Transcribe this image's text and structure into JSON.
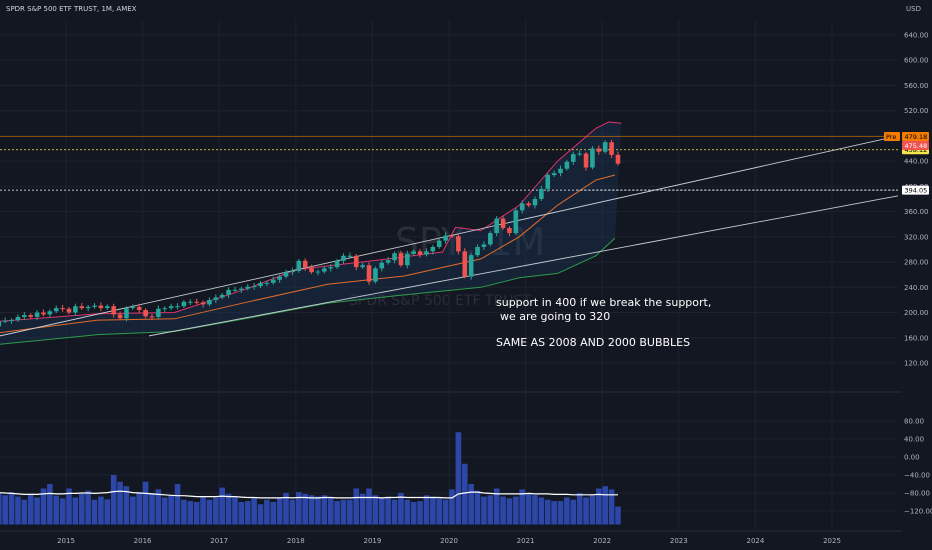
{
  "header": {
    "title": "SPDR S&P 500 ETF TRUST, 1M, AMEX",
    "currency": "USD"
  },
  "watermark": {
    "symbol": "SPY, 1M",
    "name": "SPDR S&P 500 ETF TRUST"
  },
  "annotations": {
    "line1": "support in 400 if we break the support,",
    "line2": "we are going to 320",
    "line3": "SAME AS 2008 AND 2000 BUBBLES"
  },
  "price_badges": [
    {
      "label": "458.12",
      "value": 458.12,
      "color": "#f5e64b",
      "text_color": "#000000"
    },
    {
      "label": "479.18",
      "value": 479.18,
      "color": "#f57c00",
      "text_color": "#000000",
      "tag": "Pre"
    },
    {
      "label": "475.48",
      "value": 475.48,
      "color": "#ef5350",
      "text_color": "#ffffff"
    },
    {
      "label": "394.05",
      "value": 394.05,
      "color": "#ffffff",
      "text_color": "#000000"
    }
  ],
  "colors": {
    "up": "#26a69a",
    "down": "#ef5350",
    "volume": "#2c47a8",
    "bb_upper": "#e0336b",
    "bb_lower": "#2e9c4c",
    "bb_mid": "#e36b2a",
    "trendline": "#c9ccd3",
    "volume_ma": "#ffffff"
  },
  "chart_data": [
    {
      "type": "candlestick",
      "title": "SPDR S&P 500 ETF TRUST, 1M, AMEX",
      "x_ticks": [
        "2015",
        "2016",
        "2017",
        "2018",
        "2019",
        "2020",
        "2021",
        "2022",
        "2023",
        "2024",
        "2025"
      ],
      "y_ticks": [
        640,
        600,
        560,
        520,
        480,
        440,
        400,
        360,
        320,
        280,
        240,
        200,
        160,
        120
      ],
      "y_tick_labels": [
        "640.00",
        "600.00",
        "560.00",
        "520.00",
        "480.00",
        "440.00",
        "400.00",
        "360.00",
        "320.00",
        "280.00",
        "240.00",
        "200.00",
        "160.00",
        "120.00"
      ],
      "ylim": [
        100,
        670
      ],
      "close_series": {
        "start": "2014-01",
        "values": [
          178,
          186,
          187,
          188,
          193,
          196,
          193,
          200,
          197,
          202,
          207,
          206,
          200,
          210,
          207,
          209,
          211,
          207,
          210,
          197,
          191,
          207,
          209,
          204,
          194,
          193,
          206,
          207,
          210,
          210,
          217,
          217,
          216,
          213,
          220,
          224,
          228,
          236,
          236,
          238,
          241,
          242,
          247,
          247,
          252,
          257,
          264,
          266,
          282,
          271,
          264,
          265,
          270,
          272,
          282,
          290,
          290,
          272,
          275,
          249,
          270,
          279,
          283,
          294,
          275,
          293,
          297,
          292,
          297,
          304,
          314,
          322,
          321,
          297,
          257,
          291,
          304,
          308,
          326,
          349,
          334,
          326,
          362,
          373,
          370,
          380,
          396,
          418,
          421,
          428,
          439,
          451,
          452,
          430,
          460,
          455,
          470,
          450,
          436
        ]
      },
      "horizontal_levels": [
        458.12,
        479.18,
        394.05
      ],
      "trendlines": [
        {
          "from": {
            "date": "2013-09",
            "price": 163
          },
          "to": {
            "date": "2026-03",
            "price": 480
          }
        },
        {
          "from": {
            "date": "2016-02",
            "price": 163
          },
          "to": {
            "date": "2026-03",
            "price": 385
          }
        }
      ],
      "indicators": {
        "bollinger": {
          "upper_points": [
            [
              "2014-01",
              185
            ],
            [
              "2015-06",
              198
            ],
            [
              "2016-06",
              200
            ],
            [
              "2017-06",
              240
            ],
            [
              "2018-01",
              268
            ],
            [
              "2019-01",
              282
            ],
            [
              "2019-12",
              296
            ],
            [
              "2020-02",
              335
            ],
            [
              "2020-06",
              330
            ],
            [
              "2020-12",
              370
            ],
            [
              "2021-06",
              440
            ],
            [
              "2021-12",
              492
            ],
            [
              "2022-02",
              502
            ],
            [
              "2022-04",
              500
            ]
          ],
          "middle_points": [
            [
              "2014-01",
              166
            ],
            [
              "2015-06",
              188
            ],
            [
              "2016-06",
              190
            ],
            [
              "2017-06",
              218
            ],
            [
              "2018-06",
              245
            ],
            [
              "2019-06",
              258
            ],
            [
              "2020-06",
              285
            ],
            [
              "2020-12",
              320
            ],
            [
              "2021-06",
              370
            ],
            [
              "2021-12",
              410
            ],
            [
              "2022-03",
              418
            ]
          ],
          "lower_points": [
            [
              "2014-01",
              148
            ],
            [
              "2015-06",
              165
            ],
            [
              "2016-06",
              170
            ],
            [
              "2017-06",
              192
            ],
            [
              "2018-06",
              215
            ],
            [
              "2019-06",
              228
            ],
            [
              "2020-06",
              240
            ],
            [
              "2020-12",
              255
            ],
            [
              "2021-06",
              262
            ],
            [
              "2021-12",
              290
            ],
            [
              "2022-03",
              318
            ]
          ]
        }
      }
    },
    {
      "type": "bar",
      "title": "Volume",
      "y_ticks": [
        80,
        40,
        0,
        -40,
        -80,
        -120
      ],
      "y_tick_labels": [
        "80.00",
        "40.00",
        "0.00",
        "−40.00",
        "−80.00",
        "−120.00"
      ],
      "ylim": [
        -150,
        85
      ],
      "values": [
        -72,
        -80,
        -85,
        -78,
        -88,
        -95,
        -82,
        -90,
        -70,
        -60,
        -86,
        -92,
        -70,
        -90,
        -82,
        -75,
        -95,
        -88,
        -94,
        -40,
        -55,
        -65,
        -88,
        -78,
        -55,
        -80,
        -72,
        -90,
        -85,
        -60,
        -95,
        -98,
        -100,
        -88,
        -95,
        -90,
        -68,
        -82,
        -90,
        -100,
        -98,
        -90,
        -105,
        -95,
        -100,
        -90,
        -80,
        -95,
        -78,
        -82,
        -85,
        -88,
        -85,
        -90,
        -98,
        -95,
        -95,
        -70,
        -82,
        -70,
        -85,
        -90,
        -88,
        -95,
        -80,
        -95,
        -100,
        -98,
        -85,
        -88,
        -92,
        -95,
        -72,
        55,
        -15,
        -60,
        -75,
        -88,
        -85,
        -70,
        -88,
        -92,
        -88,
        -72,
        -80,
        -85,
        -90,
        -95,
        -98,
        -98,
        -90,
        -95,
        -80,
        -90,
        -85,
        -70,
        -65,
        -72,
        -110
      ],
      "ma_values": [
        -80,
        -79,
        -80,
        -81,
        -82,
        -83,
        -83,
        -83,
        -82,
        -81,
        -82,
        -82,
        -81,
        -81,
        -80,
        -80,
        -81,
        -80,
        -79,
        -77,
        -76,
        -77,
        -79,
        -80,
        -81,
        -82,
        -83,
        -84,
        -85,
        -86,
        -86,
        -87,
        -88,
        -88,
        -88,
        -88,
        -87,
        -88,
        -88,
        -89,
        -90,
        -90,
        -91,
        -91,
        -91,
        -91,
        -90,
        -91,
        -90,
        -90,
        -91,
        -91,
        -90,
        -90,
        -91,
        -91,
        -91,
        -90,
        -90,
        -90,
        -90,
        -91,
        -90,
        -90,
        -89,
        -90,
        -90,
        -90,
        -90,
        -90,
        -90,
        -91,
        -91,
        -82,
        -80,
        -78,
        -78,
        -80,
        -81,
        -82,
        -82,
        -82,
        -82,
        -82,
        -81,
        -82,
        -82,
        -82,
        -83,
        -83,
        -83,
        -84,
        -84,
        -84,
        -84,
        -83,
        -84,
        -84,
        -84
      ],
      "x_ticks": [
        "2015",
        "2016",
        "2017",
        "2018",
        "2019",
        "2020",
        "2021",
        "2022",
        "2023",
        "2024",
        "2025"
      ]
    }
  ]
}
